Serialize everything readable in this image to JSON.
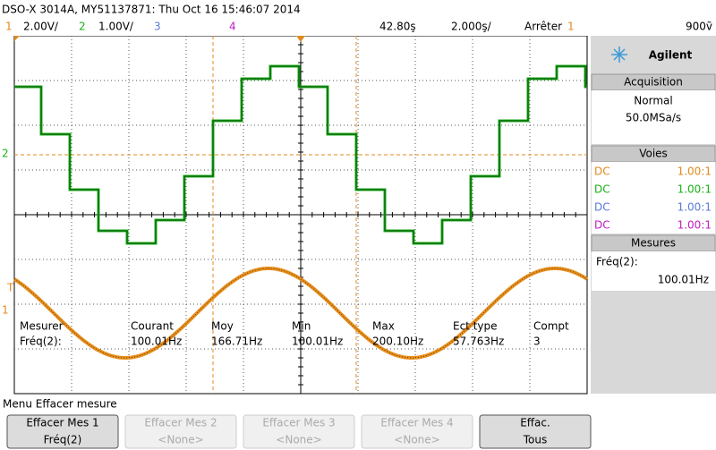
{
  "header": {
    "title": "DSO-X 3014A, MY51137871: Thu Oct 16 15:46:07 2014",
    "ch1_num": "1",
    "ch1_scale": "2.00V/",
    "ch2_num": "2",
    "ch2_scale": "1.00V/",
    "ch3_num": "3",
    "ch4_num": "4",
    "delay": "42.80ş",
    "timebase": "2.000ş/",
    "run_state": "Arrêter",
    "trigger_channel": "1",
    "trigger_level": "900ṽ"
  },
  "markers": {
    "ch2": "2",
    "trigger": "T",
    "ch1": "1"
  },
  "side_panel": {
    "brand": "Agilent",
    "acquisition": {
      "title": "Acquisition",
      "mode": "Normal",
      "rate": "50.0MSa/s"
    },
    "channels": {
      "title": "Voies",
      "rows": [
        [
          "DC",
          "1.00:1"
        ],
        [
          "DC",
          "1.00:1"
        ],
        [
          "DC",
          "1.00:1"
        ],
        [
          "DC",
          "1.00:1"
        ]
      ]
    },
    "measurements": {
      "title": "Mesures",
      "label": "Fréq(2):",
      "value": "100.01Hz"
    }
  },
  "measurement_table": {
    "columns": [
      [
        "Mesurer",
        "Fréq(2):"
      ],
      [
        "Courant",
        "100.01Hz"
      ],
      [
        "Moy",
        "166.71Hz"
      ],
      [
        "Min",
        "100.01Hz"
      ],
      [
        "Max",
        "200.10Hz"
      ],
      [
        "Ect type",
        "57.763Hz"
      ],
      [
        "Compt",
        "3"
      ]
    ]
  },
  "menu": {
    "title": "Menu Effacer mesure",
    "buttons": [
      [
        "Effacer Mes 1",
        "Fréq(2)"
      ],
      [
        "Effacer Mes 2",
        "<None>"
      ],
      [
        "Effacer Mes 3",
        "<None>"
      ],
      [
        "Effacer Mes 4",
        "<None>"
      ],
      [
        "Effac.",
        "Tous"
      ]
    ]
  }
}
